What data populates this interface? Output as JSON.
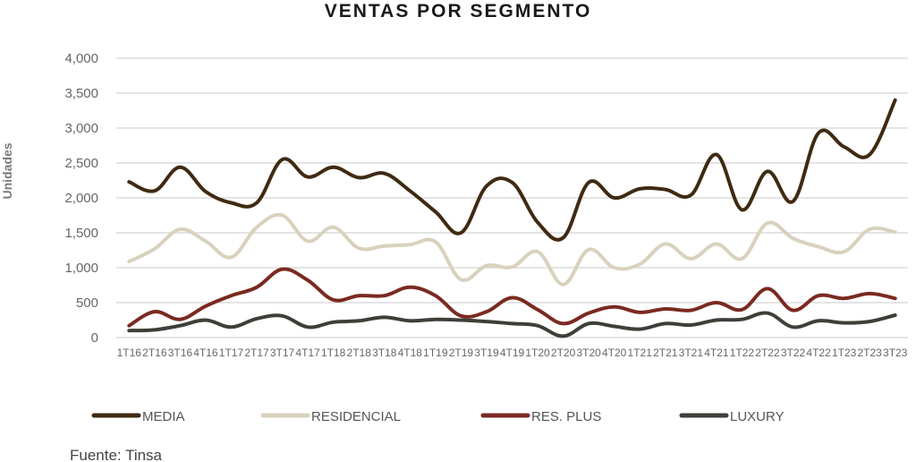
{
  "chart_data": {
    "type": "line",
    "title": "VENTAS POR SEGMENTO",
    "ylabel": "Unidades",
    "xlabel": "",
    "ylim": [
      0,
      4000
    ],
    "yticks": [
      0,
      500,
      1000,
      1500,
      2000,
      2500,
      3000,
      3500,
      4000
    ],
    "ytick_labels": [
      "0",
      "500",
      "1,000",
      "1,500",
      "2,000",
      "2,500",
      "3,000",
      "3,500",
      "4,000"
    ],
    "grid": true,
    "legend_position": "bottom",
    "categories": [
      "1T16",
      "2T16",
      "3T16",
      "4T16",
      "1T17",
      "2T17",
      "3T17",
      "4T17",
      "1T18",
      "2T18",
      "3T18",
      "4T18",
      "1T19",
      "2T19",
      "3T19",
      "4T19",
      "1T20",
      "2T20",
      "3T20",
      "4T20",
      "1T21",
      "2T21",
      "3T21",
      "4T21",
      "1T22",
      "2T22",
      "3T22",
      "4T22",
      "1T23",
      "2T23",
      "3T23"
    ],
    "series": [
      {
        "name": "MEDIA",
        "color": "#3f2a12",
        "values": [
          2230,
          2100,
          2440,
          2090,
          1930,
          1930,
          2550,
          2300,
          2440,
          2290,
          2350,
          2100,
          1800,
          1500,
          2170,
          2220,
          1650,
          1430,
          2220,
          2000,
          2130,
          2120,
          2040,
          2620,
          1830,
          2380,
          1950,
          2930,
          2730,
          2620,
          3400
        ]
      },
      {
        "name": "RESIDENCIAL",
        "color": "#d9d1bd",
        "values": [
          1090,
          1270,
          1550,
          1380,
          1150,
          1580,
          1750,
          1380,
          1580,
          1280,
          1310,
          1330,
          1370,
          830,
          1030,
          1010,
          1230,
          760,
          1260,
          1000,
          1050,
          1340,
          1130,
          1340,
          1130,
          1640,
          1420,
          1300,
          1230,
          1550,
          1510
        ]
      },
      {
        "name": "RES. PLUS",
        "color": "#7a2a20",
        "values": [
          170,
          370,
          260,
          450,
          600,
          720,
          980,
          820,
          540,
          600,
          600,
          720,
          600,
          310,
          370,
          570,
          400,
          200,
          350,
          440,
          360,
          410,
          390,
          500,
          400,
          700,
          390,
          600,
          560,
          630,
          560
        ]
      },
      {
        "name": "LUXURY",
        "color": "#3e3f38",
        "values": [
          100,
          110,
          170,
          250,
          150,
          270,
          310,
          150,
          220,
          240,
          290,
          240,
          260,
          250,
          230,
          200,
          170,
          20,
          200,
          160,
          120,
          200,
          180,
          250,
          260,
          350,
          150,
          240,
          210,
          230,
          320
        ]
      }
    ]
  },
  "source_text": "Fuente: Tinsa"
}
